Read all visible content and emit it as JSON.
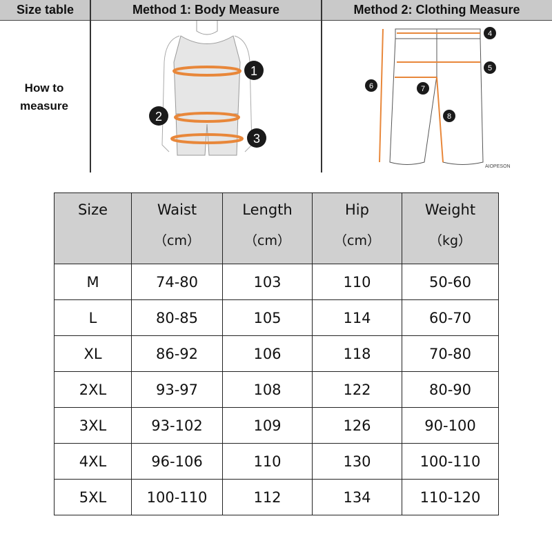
{
  "top": {
    "size_table": "Size table",
    "method1": "Method 1: Body  Measure",
    "method2": "Method 2: Clothing Measure",
    "how_to_line1": "How to",
    "how_to_line2": "measure",
    "watermark": "AIOPESON",
    "body_markers": [
      "1",
      "2",
      "3"
    ],
    "clothing_markers": [
      "4",
      "5",
      "6",
      "7",
      "8"
    ],
    "accent": "#e8873a"
  },
  "table": {
    "headers": [
      {
        "label": "Size",
        "unit": ""
      },
      {
        "label": "Waist",
        "unit": "（cm）"
      },
      {
        "label": "Length",
        "unit": "（cm）"
      },
      {
        "label": "Hip",
        "unit": "（cm）"
      },
      {
        "label": "Weight",
        "unit": "（kg）"
      }
    ],
    "rows": [
      [
        "M",
        "74-80",
        "103",
        "110",
        "50-60"
      ],
      [
        "L",
        "80-85",
        "105",
        "114",
        "60-70"
      ],
      [
        "XL",
        "86-92",
        "106",
        "118",
        "70-80"
      ],
      [
        "2XL",
        "93-97",
        "108",
        "122",
        "80-90"
      ],
      [
        "3XL",
        "93-102",
        "109",
        "126",
        "90-100"
      ],
      [
        "4XL",
        "96-106",
        "110",
        "130",
        "100-110"
      ],
      [
        "5XL",
        "100-110",
        "112",
        "134",
        "110-120"
      ]
    ]
  }
}
